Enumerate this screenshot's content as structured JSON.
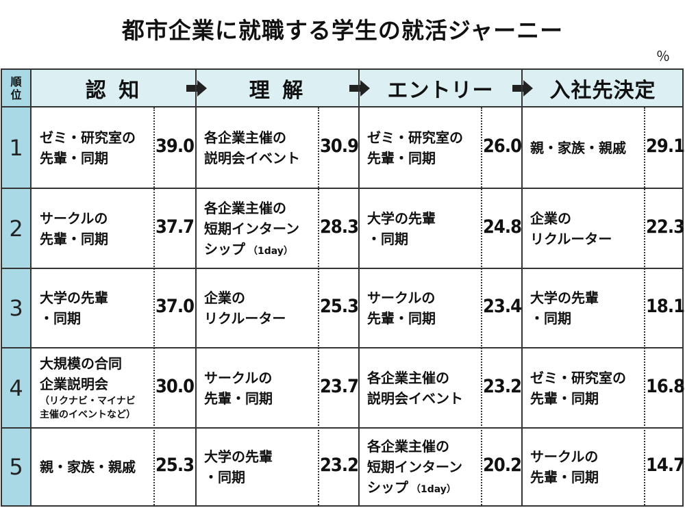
{
  "title": "都市企業に就職する学生の就活ジャーニー",
  "unit": "％",
  "rank_header": [
    "順",
    "位"
  ],
  "stages": [
    "認 知",
    "理 解",
    "エントリー",
    "入社先決定"
  ],
  "ranks": [
    "1",
    "2",
    "3",
    "4",
    "5"
  ],
  "columns": [
    {
      "entries": [
        {
          "lines": [
            "ゼミ・研究室の",
            "先輩・同期"
          ],
          "value": "39.0"
        },
        {
          "lines": [
            "サークルの",
            "先輩・同期"
          ],
          "value": "37.7"
        },
        {
          "lines": [
            "大学の先輩",
            "・同期"
          ],
          "value": "37.0"
        },
        {
          "lines": [
            "大規模の合同",
            "企業説明会"
          ],
          "note": [
            "（リクナビ・マイナビ",
            "主催のイベントなど）"
          ],
          "value": "30.0"
        },
        {
          "lines": [
            "親・家族・親戚"
          ],
          "value": "25.3"
        }
      ]
    },
    {
      "entries": [
        {
          "lines": [
            "各企業主催の",
            "説明会イベント"
          ],
          "value": "30.9"
        },
        {
          "lines": [
            "各企業主催の",
            "短期インターン",
            "シップ"
          ],
          "note_inline": "（1day）",
          "value": "28.3"
        },
        {
          "lines": [
            "企業の",
            "リクルーター"
          ],
          "value": "25.3"
        },
        {
          "lines": [
            "サークルの",
            "先輩・同期"
          ],
          "value": "23.7"
        },
        {
          "lines": [
            "大学の先輩",
            "・同期"
          ],
          "value": "23.2"
        }
      ]
    },
    {
      "entries": [
        {
          "lines": [
            "ゼミ・研究室の",
            "先輩・同期"
          ],
          "value": "26.0"
        },
        {
          "lines": [
            "大学の先輩",
            "・同期"
          ],
          "value": "24.8"
        },
        {
          "lines": [
            "サークルの",
            "先輩・同期"
          ],
          "value": "23.4"
        },
        {
          "lines": [
            "各企業主催の",
            "説明会イベント"
          ],
          "value": "23.2"
        },
        {
          "lines": [
            "各企業主催の",
            "短期インターン",
            "シップ"
          ],
          "note_inline": "（1day）",
          "value": "20.2"
        }
      ]
    },
    {
      "entries": [
        {
          "lines": [
            "親・家族・親戚"
          ],
          "value": "29.1"
        },
        {
          "lines": [
            "企業の",
            "リクルーター"
          ],
          "value": "22.3"
        },
        {
          "lines": [
            "大学の先輩",
            "・同期"
          ],
          "value": "18.1"
        },
        {
          "lines": [
            "ゼミ・研究室の",
            "先輩・同期"
          ],
          "value": "16.8"
        },
        {
          "lines": [
            "サークルの",
            "先輩・同期"
          ],
          "value": "14.7"
        }
      ]
    }
  ],
  "colors": {
    "rank_bg": "#a9d9e4",
    "header_bg": "#dcf0f4",
    "border": "#333333"
  }
}
